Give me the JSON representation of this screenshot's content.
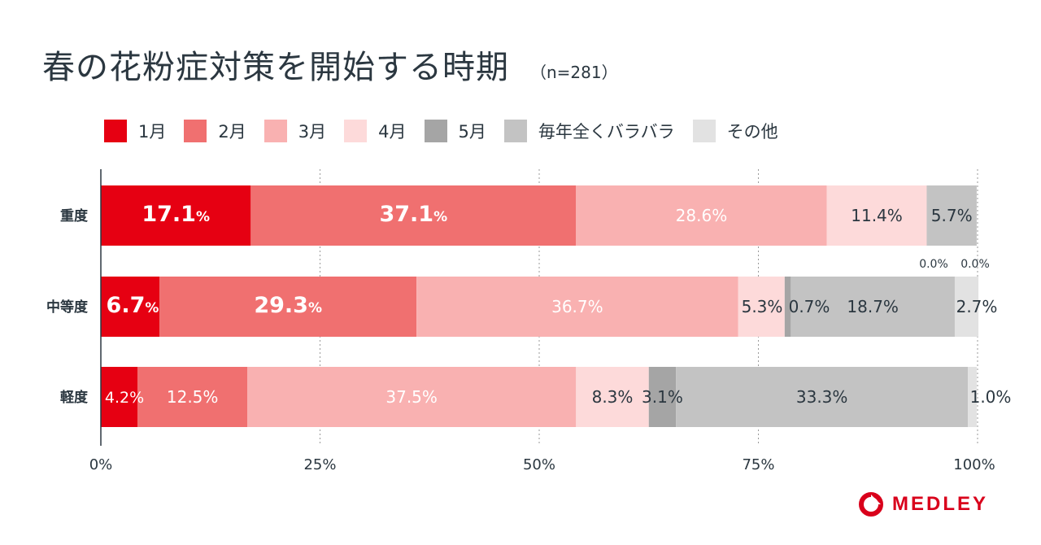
{
  "title": "春の花粉症対策を開始する時期",
  "subtitle": "（n=281）",
  "legend": [
    {
      "label": "1月",
      "color": "#e60012"
    },
    {
      "label": "2月",
      "color": "#f07070"
    },
    {
      "label": "3月",
      "color": "#f9b1b1"
    },
    {
      "label": "4月",
      "color": "#fddada"
    },
    {
      "label": "5月",
      "color": "#a5a5a5"
    },
    {
      "label": "毎年全くバラバラ",
      "color": "#c3c3c3"
    },
    {
      "label": "その他",
      "color": "#e2e2e2"
    }
  ],
  "logo_text": "MEDLEY",
  "chart_data": {
    "type": "bar",
    "orientation": "horizontal",
    "stacked": true,
    "categories": [
      "重度",
      "中等度",
      "軽度"
    ],
    "series": [
      {
        "name": "1月",
        "values": [
          17.1,
          6.7,
          4.2
        ]
      },
      {
        "name": "2月",
        "values": [
          37.1,
          29.3,
          12.5
        ]
      },
      {
        "name": "3月",
        "values": [
          28.6,
          36.7,
          37.5
        ]
      },
      {
        "name": "4月",
        "values": [
          11.4,
          5.3,
          8.3
        ]
      },
      {
        "name": "5月",
        "values": [
          0.0,
          0.7,
          3.1
        ]
      },
      {
        "name": "毎年全くバラバラ",
        "values": [
          5.7,
          18.7,
          33.3
        ]
      },
      {
        "name": "その他",
        "values": [
          0.0,
          2.7,
          1.0
        ]
      }
    ],
    "xlim": [
      0,
      100
    ],
    "x_ticks": [
      "0%",
      "25%",
      "50%",
      "75%",
      "100%"
    ],
    "grid": true
  }
}
